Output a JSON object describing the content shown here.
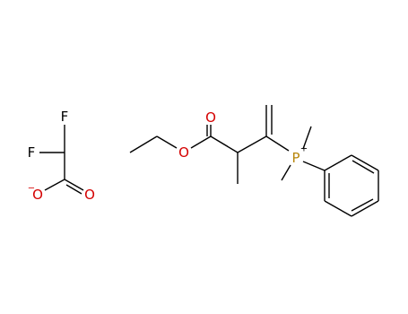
{
  "atoms": [
    {
      "label": "F"
    },
    {
      "label": "F"
    },
    {
      "label": "O"
    },
    {
      "label": "−"
    },
    {
      "label": "O"
    },
    {
      "label": "O"
    },
    {
      "label": "O"
    },
    {
      "label": "P"
    },
    {
      "label": "+"
    }
  ]
}
